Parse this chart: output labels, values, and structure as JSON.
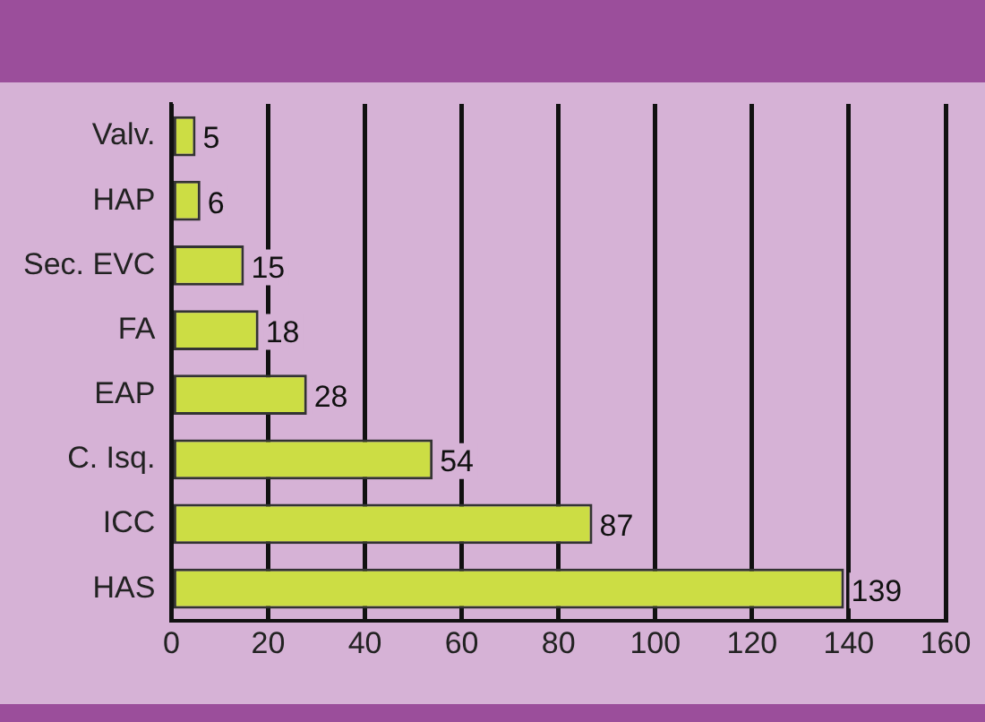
{
  "chart_data": {
    "type": "bar",
    "orientation": "horizontal",
    "categories": [
      "Valv.",
      "HAP",
      "Sec. EVC",
      "FA",
      "EAP",
      "C. Isq.",
      "ICC",
      "HAS"
    ],
    "series": [
      {
        "color": "#ccdd44",
        "values": [
          5,
          6,
          15,
          18,
          28,
          54,
          87,
          139
        ]
      }
    ],
    "xlim": [
      0,
      160
    ],
    "xticks": [
      0,
      20,
      40,
      60,
      80,
      100,
      120,
      140,
      160
    ],
    "grid": "x",
    "data_labels": true,
    "legend": false
  }
}
